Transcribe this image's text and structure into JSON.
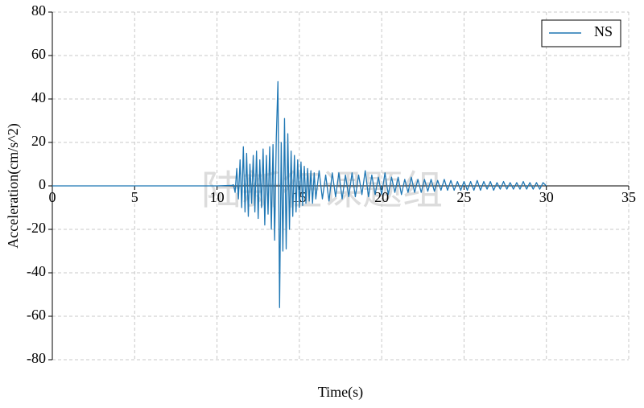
{
  "chart_data": {
    "type": "line",
    "xlabel": "Time(s)",
    "ylabel": "Acceleration(cm/s^2)",
    "watermark": "陆新征课题组",
    "legend": "upper right",
    "grid": true,
    "xlim": [
      0,
      35
    ],
    "xticks": [
      0,
      5,
      10,
      15,
      20,
      25,
      30,
      35
    ],
    "ylim": [
      -80,
      80
    ],
    "yticks": [
      -80,
      -60,
      -40,
      -20,
      0,
      20,
      40,
      60,
      80
    ],
    "x": [
      0,
      5,
      10,
      10.9,
      11.0,
      11.1,
      11.2,
      11.3,
      11.4,
      11.5,
      11.6,
      11.7,
      11.8,
      11.9,
      12.0,
      12.1,
      12.2,
      12.3,
      12.4,
      12.5,
      12.6,
      12.7,
      12.8,
      12.9,
      13.0,
      13.1,
      13.2,
      13.3,
      13.4,
      13.5,
      13.6,
      13.7,
      13.8,
      13.9,
      14.0,
      14.1,
      14.2,
      14.3,
      14.4,
      14.5,
      14.6,
      14.7,
      14.8,
      14.9,
      15.0,
      15.1,
      15.2,
      15.3,
      15.4,
      15.5,
      15.6,
      15.7,
      15.8,
      15.9,
      16.0,
      16.2,
      16.4,
      16.6,
      16.8,
      17.0,
      17.2,
      17.4,
      17.6,
      17.8,
      18.0,
      18.2,
      18.4,
      18.6,
      18.8,
      19.0,
      19.2,
      19.4,
      19.6,
      19.8,
      20.0,
      20.2,
      20.4,
      20.6,
      20.8,
      21.0,
      21.2,
      21.4,
      21.6,
      21.8,
      22.0,
      22.2,
      22.4,
      22.6,
      22.8,
      23.0,
      23.2,
      23.4,
      23.6,
      23.8,
      24.0,
      24.2,
      24.4,
      24.6,
      24.8,
      25.0,
      25.2,
      25.4,
      25.6,
      25.8,
      26.0,
      26.2,
      26.4,
      26.6,
      26.8,
      27.0,
      27.2,
      27.4,
      27.6,
      27.8,
      28.0,
      28.2,
      28.4,
      28.6,
      28.8,
      29.0,
      29.2,
      29.4,
      29.6,
      29.8,
      30.0
    ],
    "series": [
      {
        "name": "NS",
        "color": "#1f77b4",
        "values": [
          0,
          0,
          0,
          0.2,
          0.5,
          -3,
          8,
          -6,
          12,
          -10,
          18,
          -12,
          15,
          -14,
          10,
          -8,
          14,
          -12,
          16,
          -15,
          12,
          -10,
          17,
          -18,
          14,
          -13,
          18,
          -20,
          19,
          -25,
          22,
          48,
          -56,
          20,
          -30,
          31,
          -29,
          24,
          -20,
          16,
          -14,
          14,
          -12,
          12,
          -10,
          11,
          -9,
          9,
          -8,
          8,
          -7,
          7,
          -8,
          6,
          -6,
          7,
          -6,
          5,
          -7,
          6,
          -5,
          6,
          -6,
          5,
          -5,
          6,
          -5,
          5,
          -4,
          7,
          -5,
          5,
          -4,
          4,
          -4,
          6,
          -4,
          4,
          -3,
          4,
          -4,
          3,
          -3,
          4,
          -3,
          3,
          -3,
          3,
          -2.5,
          3,
          -2.5,
          2.5,
          -2,
          3,
          -2,
          2.5,
          -2,
          2,
          -2,
          2,
          -2,
          2,
          -2,
          2.5,
          -2,
          2,
          -1.5,
          2,
          -2,
          1.5,
          -1.5,
          2,
          -1.5,
          1.5,
          -1.5,
          1.5,
          -1.5,
          2,
          -1.5,
          1.5,
          -1.5,
          1.5,
          -1.5,
          1.5,
          0
        ]
      }
    ]
  }
}
